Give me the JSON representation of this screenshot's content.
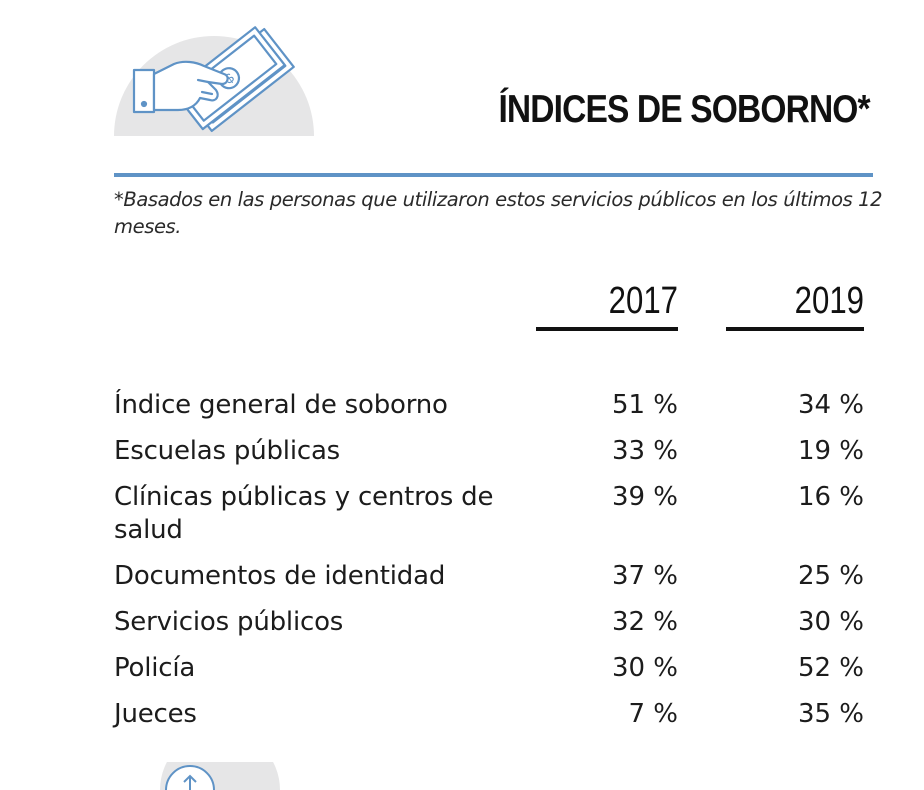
{
  "header": {
    "title": "ÍNDICES DE SOBORNO*",
    "illustration_icon": "hand-holding-money-icon"
  },
  "footnote": "*Basados en las personas que utilizaron estos servicios públicos en los últimos 12 meses.",
  "table": {
    "columns": [
      "2017",
      "2019"
    ],
    "rows": [
      {
        "label": "Índice general de soborno",
        "v2017": "51 %",
        "v2019": "34 %"
      },
      {
        "label": "Escuelas públicas",
        "v2017": "33 %",
        "v2019": "19 %"
      },
      {
        "label": "Clínicas públicas y centros de salud",
        "v2017": "39 %",
        "v2019": "16 %"
      },
      {
        "label": "Documentos de identidad",
        "v2017": "37 %",
        "v2019": "25 %"
      },
      {
        "label": "Servicios públicos",
        "v2017": "32 %",
        "v2019": "30 %"
      },
      {
        "label": "Policía",
        "v2017": "30 %",
        "v2019": "52 %"
      },
      {
        "label": "Jueces",
        "v2017": "7 %",
        "v2019": "35 %"
      }
    ]
  },
  "colors": {
    "accent": "#5f93c6",
    "icon_backdrop": "#e6e6e7",
    "text": "#1c1c1c"
  }
}
